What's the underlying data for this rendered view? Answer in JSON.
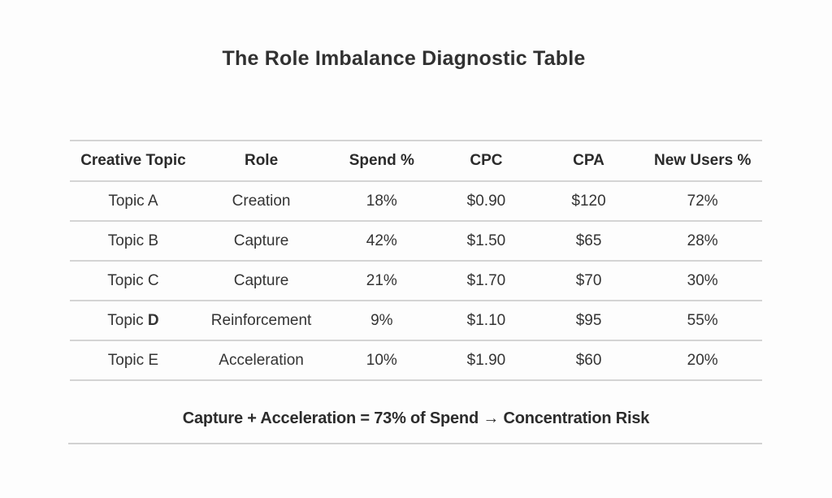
{
  "title": "The Role Imbalance Diagnostic Table",
  "table": {
    "headers": [
      "Creative Topic",
      "Role",
      "Spend %",
      "CPC",
      "CPA",
      "New Users %"
    ],
    "rows": [
      {
        "topic": "Topic A",
        "role": "Creation",
        "spend": "18%",
        "cpc": "$0.90",
        "cpa": "$120",
        "new_users": "72%"
      },
      {
        "topic": "Topic B",
        "role": "Capture",
        "spend": "42%",
        "cpc": "$1.50",
        "cpa": "$65",
        "new_users": "28%"
      },
      {
        "topic": "Topic C",
        "role": "Capture",
        "spend": "21%",
        "cpc": "$1.70",
        "cpa": "$70",
        "new_users": "30%"
      },
      {
        "topic_prefix": "Topic ",
        "topic_bold": "D",
        "role": "Reinforcement",
        "spend": "9%",
        "cpc": "$1.10",
        "cpa": "$95",
        "new_users": "55%"
      },
      {
        "topic": "Topic E",
        "role": "Acceleration",
        "spend": "10%",
        "cpc": "$1.90",
        "cpa": "$60",
        "new_users": "20%"
      }
    ]
  },
  "footnote": "Capture + Acceleration = 73% of Spend → Concentration Risk",
  "colors": {
    "text": "#2e2e2e",
    "line": "#d4d4d4",
    "background": "#fdfdfd"
  },
  "chart_data": {
    "type": "table",
    "title": "The Role Imbalance Diagnostic Table",
    "columns": [
      "Creative Topic",
      "Role",
      "Spend %",
      "CPC",
      "CPA",
      "New Users %"
    ],
    "rows": [
      [
        "Topic A",
        "Creation",
        "18%",
        "$0.90",
        "$120",
        "72%"
      ],
      [
        "Topic B",
        "Capture",
        "42%",
        "$1.50",
        "$65",
        "28%"
      ],
      [
        "Topic C",
        "Capture",
        "21%",
        "$1.70",
        "$70",
        "30%"
      ],
      [
        "Topic D",
        "Reinforcement",
        "9%",
        "$1.10",
        "$95",
        "55%"
      ],
      [
        "Topic E",
        "Acceleration",
        "10%",
        "$1.90",
        "$60",
        "20%"
      ]
    ],
    "numeric": {
      "spend_pct": [
        18,
        42,
        21,
        9,
        10
      ],
      "cpc_usd": [
        0.9,
        1.5,
        1.7,
        1.1,
        1.9
      ],
      "cpa_usd": [
        120,
        65,
        70,
        95,
        60
      ],
      "new_users_pct": [
        72,
        28,
        30,
        55,
        20
      ]
    },
    "annotation": "Capture + Acceleration = 73% of Spend → Concentration Risk"
  }
}
